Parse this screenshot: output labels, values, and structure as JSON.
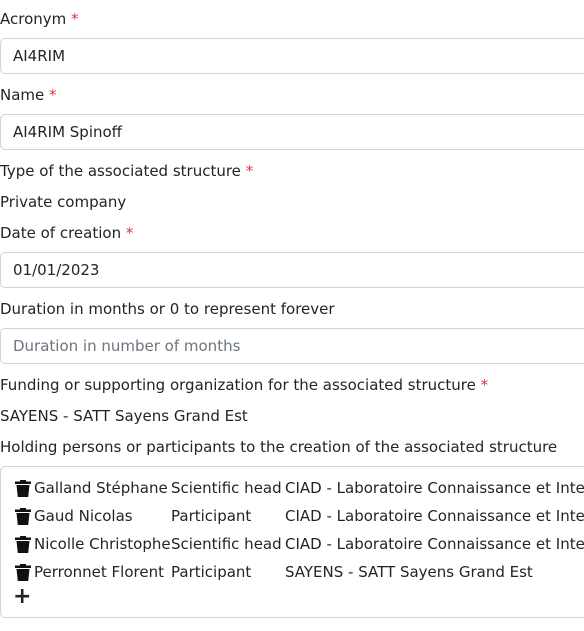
{
  "fields": {
    "acronym": {
      "label": "Acronym",
      "value": "AI4RIM"
    },
    "name": {
      "label": "Name",
      "value": "AI4RIM Spinoff"
    },
    "type": {
      "label": "Type of the associated structure",
      "value": "Private company"
    },
    "date": {
      "label": "Date of creation",
      "value": "01/01/2023"
    },
    "duration": {
      "label": "Duration in months or 0 to represent forever",
      "placeholder": "Duration in number of months"
    },
    "funding": {
      "label": "Funding or supporting organization for the associated structure",
      "value": "SAYENS - SATT Sayens Grand Est"
    },
    "holders": {
      "label": "Holding persons or participants to the creation of the associated structure"
    }
  },
  "required_mark": "*",
  "participants": [
    {
      "name": "Galland Stéphane",
      "role": "Scientific head",
      "organization": "CIAD - Laboratoire Connaissance et Intelli"
    },
    {
      "name": "Gaud Nicolas",
      "role": "Participant",
      "organization": "CIAD - Laboratoire Connaissance et Intelli"
    },
    {
      "name": "Nicolle Christophe",
      "role": "Scientific head",
      "organization": "CIAD - Laboratoire Connaissance et Intelli"
    },
    {
      "name": "Perronnet Florent",
      "role": "Participant",
      "organization": "SAYENS - SATT Sayens Grand Est"
    }
  ],
  "add_symbol": "+",
  "icons": {
    "delete": "trash-icon",
    "add": "plus-icon"
  },
  "colors": {
    "required": "#dc3545",
    "border": "#ced4da",
    "placeholder": "#6c757d"
  }
}
